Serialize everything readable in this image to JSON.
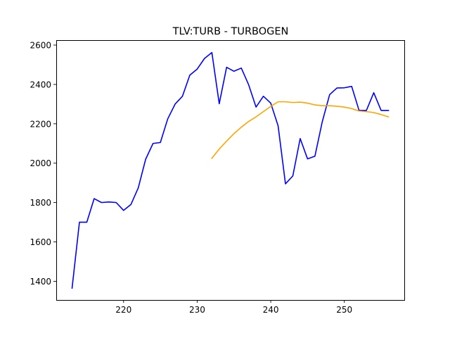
{
  "chart_data": {
    "type": "line",
    "title": "TLV:TURB - TURBOGEN",
    "xlabel": "",
    "ylabel": "",
    "xlim": [
      210.85,
      258.15
    ],
    "ylim": [
      1305,
      2625
    ],
    "xticks": [
      220,
      230,
      240,
      250
    ],
    "yticks": [
      1400,
      1600,
      1800,
      2000,
      2200,
      2400,
      2600
    ],
    "grid": false,
    "series": [
      {
        "color": "#0000ff",
        "x": [
          213,
          214,
          215,
          216,
          217,
          218,
          219,
          220,
          221,
          222,
          223,
          224,
          225,
          226,
          227,
          228,
          229,
          230,
          231,
          232,
          233,
          234,
          235,
          236,
          237,
          238,
          239,
          240,
          241,
          242,
          243,
          244,
          245,
          246,
          247,
          248,
          249,
          250,
          251,
          252,
          253,
          254,
          255,
          256
        ],
        "values": [
          1365,
          1700,
          1700,
          1820,
          1800,
          1803,
          1800,
          1760,
          1790,
          1875,
          2020,
          2100,
          2105,
          2225,
          2300,
          2340,
          2447,
          2478,
          2532,
          2562,
          2302,
          2487,
          2467,
          2483,
          2398,
          2285,
          2340,
          2305,
          2190,
          1895,
          1935,
          2125,
          2022,
          2035,
          2210,
          2348,
          2382,
          2383,
          2390,
          2268,
          2268,
          2358,
          2268,
          2268
        ]
      },
      {
        "color": "#ffa500",
        "x": [
          232,
          233,
          234,
          235,
          236,
          237,
          238,
          239,
          240,
          241,
          242,
          243,
          244,
          245,
          246,
          247,
          248,
          249,
          250,
          251,
          252,
          253,
          254,
          255,
          256
        ],
        "values": [
          2025,
          2072,
          2112,
          2150,
          2183,
          2212,
          2235,
          2262,
          2288,
          2312,
          2312,
          2308,
          2310,
          2305,
          2296,
          2292,
          2292,
          2289,
          2285,
          2277,
          2265,
          2262,
          2257,
          2247,
          2235
        ]
      }
    ]
  }
}
